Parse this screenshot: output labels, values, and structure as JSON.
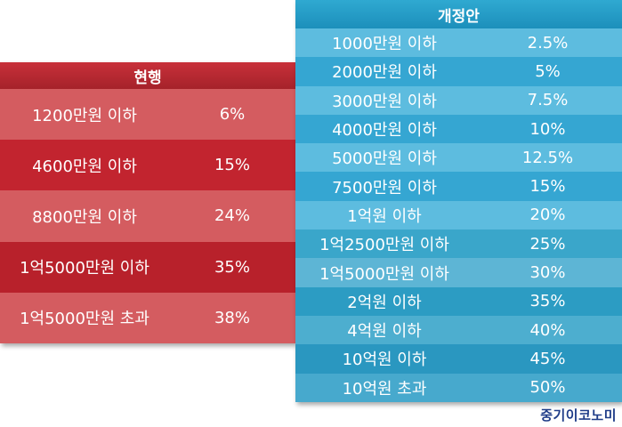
{
  "current": {
    "title": "현행",
    "rows": [
      {
        "bracket": "1200만원 이하",
        "rate": "6%"
      },
      {
        "bracket": "4600만원 이하",
        "rate": "15%"
      },
      {
        "bracket": "8800만원 이하",
        "rate": "24%"
      },
      {
        "bracket": "1억5000만원 이하",
        "rate": "35%"
      },
      {
        "bracket": "1억5000만원 초과",
        "rate": "38%"
      }
    ],
    "colors": [
      "#d45c60",
      "#c2242f",
      "#d45c60",
      "#b8212b",
      "#d45c60"
    ]
  },
  "proposed": {
    "title": "개정안",
    "rows": [
      {
        "bracket": "1000만원 이하",
        "rate": "2.5%"
      },
      {
        "bracket": "2000만원 이하",
        "rate": "5%"
      },
      {
        "bracket": "3000만원 이하",
        "rate": "7.5%"
      },
      {
        "bracket": "4000만원 이하",
        "rate": "10%"
      },
      {
        "bracket": "5000만원 이하",
        "rate": "12.5%"
      },
      {
        "bracket": "7500만원 이하",
        "rate": "15%"
      },
      {
        "bracket": "1억원 이하",
        "rate": "20%"
      },
      {
        "bracket": "1억2500만원 이하",
        "rate": "25%"
      },
      {
        "bracket": "1억5000만원 이하",
        "rate": "30%"
      },
      {
        "bracket": "2억원 이하",
        "rate": "35%"
      },
      {
        "bracket": "4억원 이하",
        "rate": "40%"
      },
      {
        "bracket": "10억원 이하",
        "rate": "45%"
      },
      {
        "bracket": "10억원 초과",
        "rate": "50%"
      }
    ],
    "colors": [
      "#5dbcdf",
      "#35a6d2",
      "#5dbcdf",
      "#35a6d2",
      "#5dbcdf",
      "#35a6d2",
      "#5dbcdf",
      "#3aa6ca",
      "#5db5d5",
      "#2c9cc3",
      "#4daecf",
      "#2a97c0",
      "#47a9cd"
    ]
  },
  "logo": "중기이코노미"
}
